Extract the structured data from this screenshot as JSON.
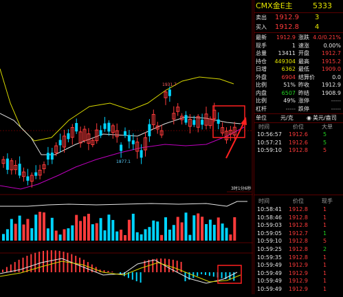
{
  "chart": {
    "time_label": "3时1分6秒",
    "high_label": "1931.7",
    "low_label": "1877.1",
    "colors": {
      "up": "#ff3b3b",
      "down": "#00d4ff",
      "ma_yellow": "#d8d800",
      "ma_white": "#e0e0e0",
      "ma_purple": "#c000c0",
      "annotation": "#ff2020",
      "grid": "#5a0000"
    }
  },
  "quote": {
    "title": "CMX金E主",
    "code": "5333",
    "sell_label": "卖出",
    "sell_price": "1912.9",
    "sell_volume": "3",
    "buy_label": "买入",
    "buy_price": "1912.8",
    "buy_volume": "4",
    "stats": [
      {
        "l1": "最新",
        "v1": "1912.9",
        "c1": "r",
        "l2": "涨跌",
        "v2": "4.0/0.21%",
        "c2": "r"
      },
      {
        "l1": "现手",
        "v1": "1",
        "c1": "w",
        "l2": "速涨",
        "v2": "0.00%",
        "c2": "w"
      },
      {
        "l1": "总量",
        "v1": "13411",
        "c1": "w",
        "l2": "开盘",
        "v2": "1912.7",
        "c2": "r"
      },
      {
        "l1": "持仓",
        "v1": "449304",
        "c1": "y",
        "l2": "最高",
        "v2": "1915.2",
        "c2": "r"
      },
      {
        "l1": "日增",
        "v1": "6362",
        "c1": "y",
        "l2": "最低",
        "v2": "1909.0",
        "c2": "r"
      },
      {
        "l1": "外盘",
        "v1": "6904",
        "c1": "r",
        "l2": "结算价",
        "v2": "0.0",
        "c2": "w"
      },
      {
        "l1": "比例",
        "v1": "51%",
        "c1": "w",
        "l2": "昨收",
        "v2": "1912.9",
        "c2": "w"
      },
      {
        "l1": "内盘",
        "v1": "6507",
        "c1": "g",
        "l2": "昨结",
        "v2": "1908.9",
        "c2": "w"
      },
      {
        "l1": "比例",
        "v1": "49%",
        "c1": "w",
        "l2": "涨停",
        "v2": "-----",
        "c2": "gr"
      },
      {
        "l1": "杠杆",
        "v1": "-----",
        "c1": "gr",
        "l2": "跌停",
        "v2": "-----",
        "c2": "gr"
      }
    ],
    "unit_label": "单位",
    "unit_value": "元/克",
    "unit_option": "美元/盎司",
    "trades_header": {
      "time": "时间",
      "price": "价位",
      "volume": "大单"
    },
    "trades_top": [
      {
        "time": "10:56:57",
        "price": "1912.6",
        "vol": "5",
        "vc": "g"
      },
      {
        "time": "10:57:21",
        "price": "1912.6",
        "vol": "5",
        "vc": "g"
      },
      {
        "time": "10:59:10",
        "price": "1912.8",
        "vol": "5",
        "vc": "r"
      }
    ],
    "trades_header2": {
      "time": "时间",
      "price": "价位",
      "volume": "现手"
    },
    "trades_bottom": [
      {
        "time": "10:58:41",
        "price": "1912.8",
        "vol": "1",
        "vc": "r"
      },
      {
        "time": "10:58:46",
        "price": "1912.8",
        "vol": "1",
        "vc": "r"
      },
      {
        "time": "10:59:03",
        "price": "1912.8",
        "vol": "1",
        "vc": "r"
      },
      {
        "time": "10:59:05",
        "price": "1912.7",
        "vol": "1",
        "vc": "g"
      },
      {
        "time": "10:59:10",
        "price": "1912.8",
        "vol": "5",
        "vc": "r"
      },
      {
        "time": "10:59:25",
        "price": "1912.8",
        "vol": "2",
        "vc": "g"
      },
      {
        "time": "10:59:35",
        "price": "1912.8",
        "vol": "1",
        "vc": "r"
      },
      {
        "time": "10:59:49",
        "price": "1912.9",
        "vol": "1",
        "vc": "r"
      },
      {
        "time": "10:59:49",
        "price": "1912.9",
        "vol": "1",
        "vc": "r"
      },
      {
        "time": "10:59:49",
        "price": "1912.9",
        "vol": "1",
        "vc": "r"
      },
      {
        "time": "10:59:49",
        "price": "1912.9",
        "vol": "1",
        "vc": "r"
      }
    ]
  }
}
